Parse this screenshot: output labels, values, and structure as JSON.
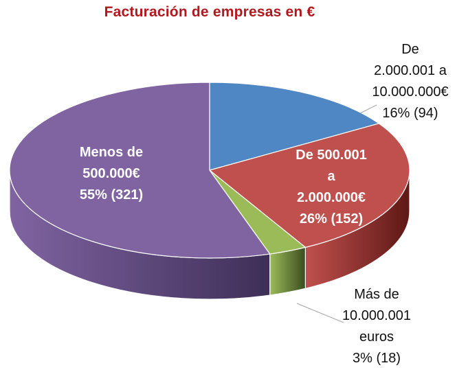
{
  "chart_data": {
    "type": "pie",
    "style": "3d",
    "title": "Facturación de empresas en €",
    "slices": [
      {
        "label_lines": [
          "De",
          "2.000.001 a",
          "10.000.000€",
          "16% (94)"
        ],
        "percent": 16,
        "count": 94,
        "color": "#4f86c4",
        "side_color": "#2f4f74"
      },
      {
        "label_lines": [
          "De 500.001",
          "a",
          "2.000.000€",
          "26% (152)"
        ],
        "percent": 26,
        "count": 152,
        "color": "#c0504d",
        "side_color": "#5e1816"
      },
      {
        "label_lines": [
          "Más de",
          "10.000.001",
          "euros",
          "3% (18)"
        ],
        "percent": 3,
        "count": 18,
        "color": "#9bbb59",
        "side_color": "#3b4d20"
      },
      {
        "label_lines": [
          "Menos de",
          "500.000€",
          "55% (321)"
        ],
        "percent": 55,
        "count": 321,
        "color": "#8064a2",
        "side_color": "#3e2f57"
      }
    ]
  }
}
